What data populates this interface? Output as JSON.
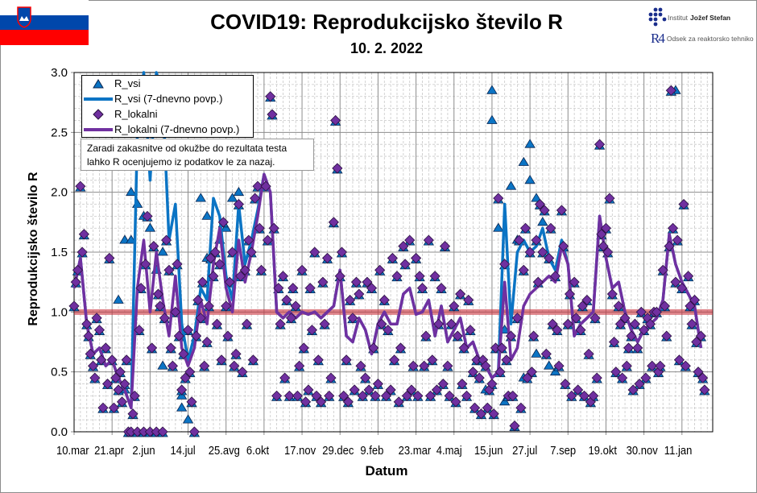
{
  "header": {
    "title": "COVID19: Reprodukcijsko število R",
    "date": "10. 2. 2022",
    "logo_ijs_prefix": "Institut",
    "logo_ijs_name": "Jožef Stefan",
    "logo_r4_mark": "R4",
    "logo_r4_text": "Odsek za reaktorsko tehniko"
  },
  "note": {
    "line1": "Zaradi zakasnitve od okužbe do rezultata testa",
    "line2": "lahko R ocenjujemo iz podatkov le za nazaj."
  },
  "colors": {
    "r_vsi": "#0b74c4",
    "r_lokalni": "#7030a0",
    "reference_line": "#c8323c",
    "flag_white": "#ffffff",
    "flag_blue": "#0047ab",
    "flag_red": "#ff0000"
  },
  "chart_data": {
    "type": "line+scatter",
    "xlabel": "Datum",
    "ylabel": "Reprodukcijsko število R",
    "ylim": [
      0,
      3.0
    ],
    "yticks": [
      "0.0",
      "0.5",
      "1.0",
      "1.5",
      "2.0",
      "2.5",
      "3.0"
    ],
    "xticks": [
      "10.mar",
      "21.apr",
      "2.jun",
      "14.jul",
      "25.avg",
      "6.okt",
      "17.nov",
      "29.dec",
      "9.feb",
      "23.mar",
      "4.maj",
      "15.jun",
      "27.jul",
      "7.sep",
      "19.okt",
      "30.nov",
      "11.jan"
    ],
    "xtick_dates": [
      "2020-03-10",
      "2020-04-21",
      "2020-06-02",
      "2020-07-14",
      "2020-08-25",
      "2020-10-06",
      "2020-11-17",
      "2020-12-29",
      "2021-02-09",
      "2021-03-23",
      "2021-05-04",
      "2021-06-15",
      "2021-07-27",
      "2021-09-07",
      "2021-10-19",
      "2021-11-30",
      "2022-01-11"
    ],
    "xlim": [
      "2020-03-10",
      "2022-02-14"
    ],
    "grid": true,
    "legend_position": "top-left",
    "reference_line": 1.0,
    "legend": [
      "R_vsi",
      "R_vsi (7-dnevno povp.)",
      "R_lokalni",
      "R_lokalni (7-dnevno povp.)"
    ],
    "dates": [
      "2020-03-10",
      "2020-03-17",
      "2020-03-24",
      "2020-03-31",
      "2020-04-07",
      "2020-04-14",
      "2020-04-21",
      "2020-04-28",
      "2020-05-05",
      "2020-05-12",
      "2020-05-19",
      "2020-05-26",
      "2020-06-02",
      "2020-06-09",
      "2020-06-16",
      "2020-06-23",
      "2020-06-30",
      "2020-07-07",
      "2020-07-14",
      "2020-07-21",
      "2020-07-28",
      "2020-08-04",
      "2020-08-11",
      "2020-08-18",
      "2020-08-25",
      "2020-09-01",
      "2020-09-08",
      "2020-09-15",
      "2020-09-22",
      "2020-09-29",
      "2020-10-06",
      "2020-10-13",
      "2020-10-20",
      "2020-10-27",
      "2020-11-03",
      "2020-11-10",
      "2020-11-17",
      "2020-11-24",
      "2020-12-01",
      "2020-12-08",
      "2020-12-15",
      "2020-12-22",
      "2020-12-29",
      "2021-01-05",
      "2021-01-12",
      "2021-01-19",
      "2021-01-26",
      "2021-02-02",
      "2021-02-09",
      "2021-02-16",
      "2021-02-23",
      "2021-03-02",
      "2021-03-09",
      "2021-03-16",
      "2021-03-23",
      "2021-03-30",
      "2021-04-06",
      "2021-04-13",
      "2021-04-20",
      "2021-04-27",
      "2021-05-04",
      "2021-05-11",
      "2021-05-18",
      "2021-05-25",
      "2021-06-01",
      "2021-06-08",
      "2021-06-15",
      "2021-06-22",
      "2021-06-29",
      "2021-07-06",
      "2021-07-13",
      "2021-07-20",
      "2021-07-27",
      "2021-08-03",
      "2021-08-10",
      "2021-08-17",
      "2021-08-24",
      "2021-08-31",
      "2021-09-07",
      "2021-09-14",
      "2021-09-21",
      "2021-09-28",
      "2021-10-05",
      "2021-10-12",
      "2021-10-19",
      "2021-10-26",
      "2021-11-02",
      "2021-11-09",
      "2021-11-16",
      "2021-11-23",
      "2021-11-30",
      "2021-12-07",
      "2021-12-14",
      "2021-12-21",
      "2021-12-28",
      "2022-01-04",
      "2022-01-11",
      "2022-01-18",
      "2022-01-25",
      "2022-02-01"
    ],
    "series": [
      {
        "name": "R_vsi (7-dnevno povp.)",
        "kind": "line",
        "values": [
          1.2,
          1.45,
          0.9,
          0.65,
          0.7,
          0.55,
          0.6,
          0.45,
          0.35,
          0.2,
          2.5,
          3.0,
          2.1,
          3.0,
          2.8,
          1.6,
          1.9,
          0.9,
          0.6,
          0.8,
          1.2,
          1.1,
          1.95,
          1.8,
          1.3,
          1.1,
          1.9,
          1.4,
          1.6,
          1.85,
          2.15,
          2.0,
          1.0,
          0.95,
          1.0,
          0.95,
          1.0,
          0.98,
          1.0,
          0.95,
          1.0,
          1.05,
          1.35,
          0.8,
          0.75,
          0.95,
          0.85,
          0.65,
          0.9,
          1.0,
          0.9,
          0.9,
          1.15,
          1.2,
          0.98,
          1.0,
          1.1,
          0.8,
          1.05,
          0.75,
          0.85,
          0.95,
          0.7,
          0.75,
          0.6,
          0.55,
          0.45,
          0.5,
          1.9,
          0.9,
          1.5,
          1.6,
          1.5,
          1.55,
          1.7,
          1.45,
          1.35,
          1.6,
          1.4,
          0.8,
          0.9,
          0.95,
          1.0,
          1.8,
          1.45,
          1.2,
          1.25,
          1.0,
          0.85,
          0.75,
          0.85,
          0.9,
          0.95,
          1.1,
          1.65,
          1.4,
          1.25,
          1.15,
          1.05,
          0.7
        ]
      },
      {
        "name": "R_lokalni (7-dnevno povp.)",
        "kind": "line",
        "values": [
          1.2,
          1.45,
          0.9,
          0.65,
          0.7,
          0.55,
          0.6,
          0.45,
          0.35,
          0.2,
          1.2,
          1.6,
          1.0,
          1.5,
          1.1,
          0.8,
          1.3,
          0.7,
          0.55,
          0.7,
          1.1,
          0.9,
          1.4,
          1.7,
          1.2,
          1.0,
          1.6,
          1.25,
          1.5,
          1.8,
          2.15,
          2.0,
          1.0,
          0.95,
          1.0,
          0.95,
          1.0,
          0.98,
          1.0,
          0.95,
          1.0,
          1.05,
          1.35,
          0.8,
          0.75,
          0.95,
          0.85,
          0.65,
          0.9,
          1.0,
          0.9,
          0.9,
          1.15,
          1.2,
          0.98,
          1.0,
          1.1,
          0.8,
          1.05,
          0.75,
          0.85,
          0.95,
          0.7,
          0.75,
          0.6,
          0.55,
          0.45,
          0.5,
          1.25,
          0.6,
          0.7,
          1.05,
          1.15,
          1.2,
          1.25,
          1.3,
          1.25,
          1.55,
          1.4,
          0.8,
          0.9,
          0.95,
          1.0,
          1.8,
          1.45,
          1.2,
          1.25,
          1.0,
          0.85,
          0.75,
          0.85,
          0.9,
          0.95,
          1.1,
          1.65,
          1.4,
          1.25,
          1.15,
          1.05,
          0.7
        ]
      },
      {
        "name": "R_lokalni",
        "kind": "scatter",
        "weekly_points": [
          [
            1.05,
            1.25,
            1.35
          ],
          [
            2.05,
            1.5,
            1.65
          ],
          [
            0.9,
            0.8,
            0.65
          ],
          [
            0.55,
            0.45,
            0.95
          ],
          [
            0.85,
            0.6,
            0.2
          ],
          [
            0.7,
            0.4,
            1.45
          ],
          [
            0.6,
            0.2,
            0.45
          ],
          [
            0.35,
            0.5,
            0.25
          ],
          [
            0.4,
            0.6,
            0.0
          ],
          [
            0.0,
            0.15,
            0.3
          ],
          [
            0.0,
            0.85,
            1.2
          ],
          [
            0.0,
            1.4,
            1.8
          ],
          [
            0.0,
            0.7,
            1.55
          ],
          [
            0.0,
            1.15,
            1.05
          ],
          [
            0.0,
            0.95,
            1.6
          ],
          [
            1.35,
            0.7,
            0.55
          ],
          [
            1.0,
            1.4,
            0.8
          ],
          [
            0.35,
            0.65,
            0.45
          ],
          [
            0.85,
            0.5,
            0.25
          ],
          [
            0.0,
            0.8,
            1.1
          ],
          [
            0.95,
            1.25,
            0.55
          ],
          [
            0.75,
            1.05,
            1.45
          ],
          [
            1.3,
            1.5,
            0.9
          ],
          [
            1.4,
            0.6,
            1.75
          ],
          [
            1.05,
            0.8,
            1.25
          ],
          [
            1.5,
            0.55,
            0.65
          ],
          [
            1.9,
            1.3,
            0.5
          ],
          [
            1.35,
            0.9,
            1.6
          ],
          [
            1.5,
            0.6,
            1.95
          ],
          [
            2.05,
            1.7,
            1.35
          ],
          [
            2.4,
            2.05,
            1.6
          ],
          [
            2.8,
            2.65,
            1.7
          ],
          [
            0.3,
            1.2,
            0.9
          ],
          [
            1.3,
            0.45,
            1.1
          ],
          [
            0.3,
            0.95,
            1.2
          ],
          [
            1.05,
            0.3,
            0.55
          ],
          [
            1.35,
            0.7,
            0.25
          ],
          [
            0.35,
            1.2,
            0.85
          ],
          [
            1.5,
            0.3,
            0.6
          ],
          [
            0.25,
            1.25,
            0.9
          ],
          [
            1.45,
            0.3,
            0.45
          ],
          [
            1.75,
            2.6,
            2.2
          ],
          [
            1.3,
            1.5,
            0.3
          ],
          [
            0.6,
            0.25,
            1.1
          ],
          [
            0.95,
            0.35,
            1.25
          ],
          [
            1.15,
            0.55,
            0.3
          ],
          [
            0.45,
            1.25,
            0.35
          ],
          [
            1.2,
            0.7,
            0.3
          ],
          [
            0.4,
            1.35,
            0.9
          ],
          [
            1.1,
            0.3,
            0.85
          ],
          [
            0.35,
            1.45,
            0.6
          ],
          [
            1.3,
            0.25,
            0.7
          ],
          [
            1.55,
            1.4,
            0.3
          ],
          [
            1.6,
            0.35,
            0.55
          ],
          [
            1.45,
            0.3,
            1.3
          ],
          [
            1.2,
            0.55,
            0.8
          ],
          [
            1.6,
            0.3,
            0.6
          ],
          [
            1.3,
            0.35,
            0.9
          ],
          [
            1.2,
            0.4,
            1.55
          ],
          [
            0.55,
            0.3,
            0.9
          ],
          [
            1.05,
            0.25,
            0.8
          ],
          [
            1.15,
            0.4,
            0.7
          ],
          [
            0.3,
            1.1,
            0.85
          ],
          [
            0.5,
            0.2,
            0.6
          ],
          [
            0.45,
            0.15,
            0.6
          ],
          [
            0.55,
            0.2,
            0.35
          ],
          [
            0.4,
            0.15,
            0.7
          ],
          [
            1.95,
            0.5,
            0.7
          ],
          [
            1.4,
            0.6,
            0.3
          ],
          [
            0.8,
            0.3,
            0.05
          ],
          [
            0.95,
            1.6,
            0.2
          ],
          [
            1.35,
            1.7,
            0.45
          ],
          [
            1.5,
            0.5,
            0.8
          ],
          [
            1.6,
            1.25,
            1.9
          ],
          [
            1.5,
            1.85,
            0.65
          ],
          [
            1.45,
            1.7,
            0.9
          ],
          [
            1.3,
            0.85,
            0.55
          ],
          [
            1.85,
            1.55,
            0.4
          ],
          [
            0.9,
            1.15,
            0.3
          ],
          [
            1.25,
            0.95,
            0.35
          ],
          [
            0.85,
            1.05,
            0.3
          ],
          [
            1.1,
            0.65,
            0.25
          ],
          [
            0.3,
            0.95,
            0.45
          ],
          [
            2.4,
            1.65,
            1.55
          ],
          [
            1.7,
            1.5,
            1.95
          ],
          [
            1.15,
            0.75,
            0.5
          ],
          [
            1.05,
            0.9,
            0.45
          ],
          [
            0.95,
            0.55,
            0.7
          ],
          [
            0.8,
            0.35,
            0.9
          ],
          [
            0.7,
            0.4,
            1.0
          ],
          [
            0.85,
            0.45,
            0.95
          ],
          [
            0.9,
            0.55,
            1.0
          ],
          [
            1.0,
            0.5,
            0.55
          ],
          [
            1.35,
            1.05,
            0.8
          ],
          [
            1.55,
            2.85,
            1.7
          ],
          [
            1.25,
            1.6,
            0.6
          ],
          [
            1.2,
            1.9,
            0.55
          ],
          [
            1.3,
            1.05,
            0.9
          ],
          [
            1.1,
            0.75,
            0.5
          ],
          [
            0.8,
            0.45,
            0.35
          ]
        ]
      },
      {
        "name": "R_vsi",
        "kind": "scatter",
        "points": [
          [
            "2020-04-28",
            1.1
          ],
          [
            "2020-05-05",
            0.35
          ],
          [
            "2020-05-05",
            1.6
          ],
          [
            "2020-05-12",
            2.0
          ],
          [
            "2020-05-12",
            1.6
          ],
          [
            "2020-05-19",
            1.9
          ],
          [
            "2020-05-26",
            1.8
          ],
          [
            "2020-05-26",
            2.95
          ],
          [
            "2020-06-02",
            1.7
          ],
          [
            "2020-06-09",
            1.35
          ],
          [
            "2020-06-16",
            1.5
          ],
          [
            "2020-06-16",
            0.55
          ],
          [
            "2020-07-07",
            0.3
          ],
          [
            "2020-07-07",
            0.2
          ],
          [
            "2020-07-14",
            0.1
          ],
          [
            "2020-07-28",
            1.95
          ],
          [
            "2020-08-04",
            1.8
          ],
          [
            "2020-08-04",
            1.45
          ],
          [
            "2020-08-18",
            1.6
          ],
          [
            "2020-08-25",
            1.7
          ],
          [
            "2020-09-01",
            1.95
          ],
          [
            "2020-09-08",
            2.0
          ],
          [
            "2021-06-08",
            0.35
          ],
          [
            "2021-06-15",
            2.85
          ],
          [
            "2021-06-15",
            2.6
          ],
          [
            "2021-06-22",
            1.7
          ],
          [
            "2021-06-29",
            0.85
          ],
          [
            "2021-06-29",
            0.25
          ],
          [
            "2021-07-06",
            2.05
          ],
          [
            "2021-07-13",
            1.6
          ],
          [
            "2021-07-20",
            2.25
          ],
          [
            "2021-07-20",
            0.45
          ],
          [
            "2021-07-27",
            2.4
          ],
          [
            "2021-07-27",
            2.1
          ],
          [
            "2021-08-03",
            1.95
          ],
          [
            "2021-08-03",
            0.65
          ],
          [
            "2021-08-10",
            1.75
          ],
          [
            "2021-08-17",
            0.55
          ],
          [
            "2021-08-24",
            0.5
          ],
          [
            "2022-01-04",
            2.85
          ]
        ]
      }
    ]
  }
}
